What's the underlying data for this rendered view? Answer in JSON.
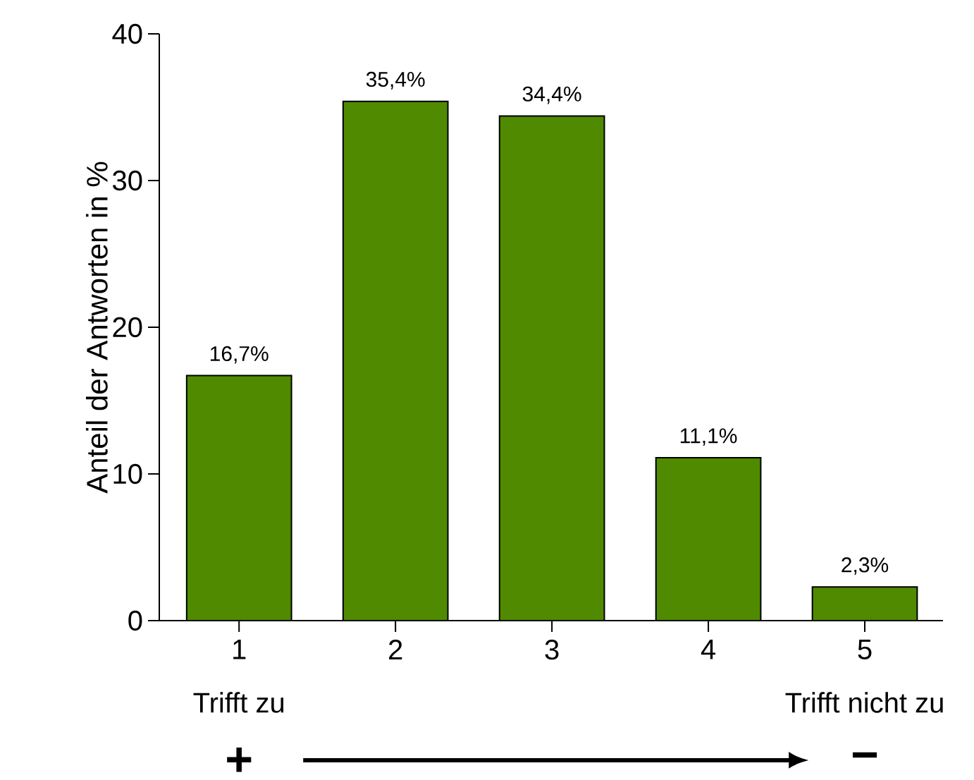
{
  "chart_data": {
    "type": "bar",
    "categories": [
      "1",
      "2",
      "3",
      "4",
      "5"
    ],
    "values": [
      16.7,
      35.4,
      34.4,
      11.1,
      2.3
    ],
    "value_labels": [
      "16,7%",
      "35,4%",
      "34,4%",
      "11,1%",
      "2,3%"
    ],
    "color": "#4f8a00",
    "ylabel": "Anteil der Antworten in %",
    "ylim": [
      0,
      40
    ],
    "yticks": [
      0,
      10,
      20,
      30,
      40
    ],
    "annotations": [
      "Trifft zu",
      "Trifft nicht zu",
      "+",
      "−"
    ]
  }
}
